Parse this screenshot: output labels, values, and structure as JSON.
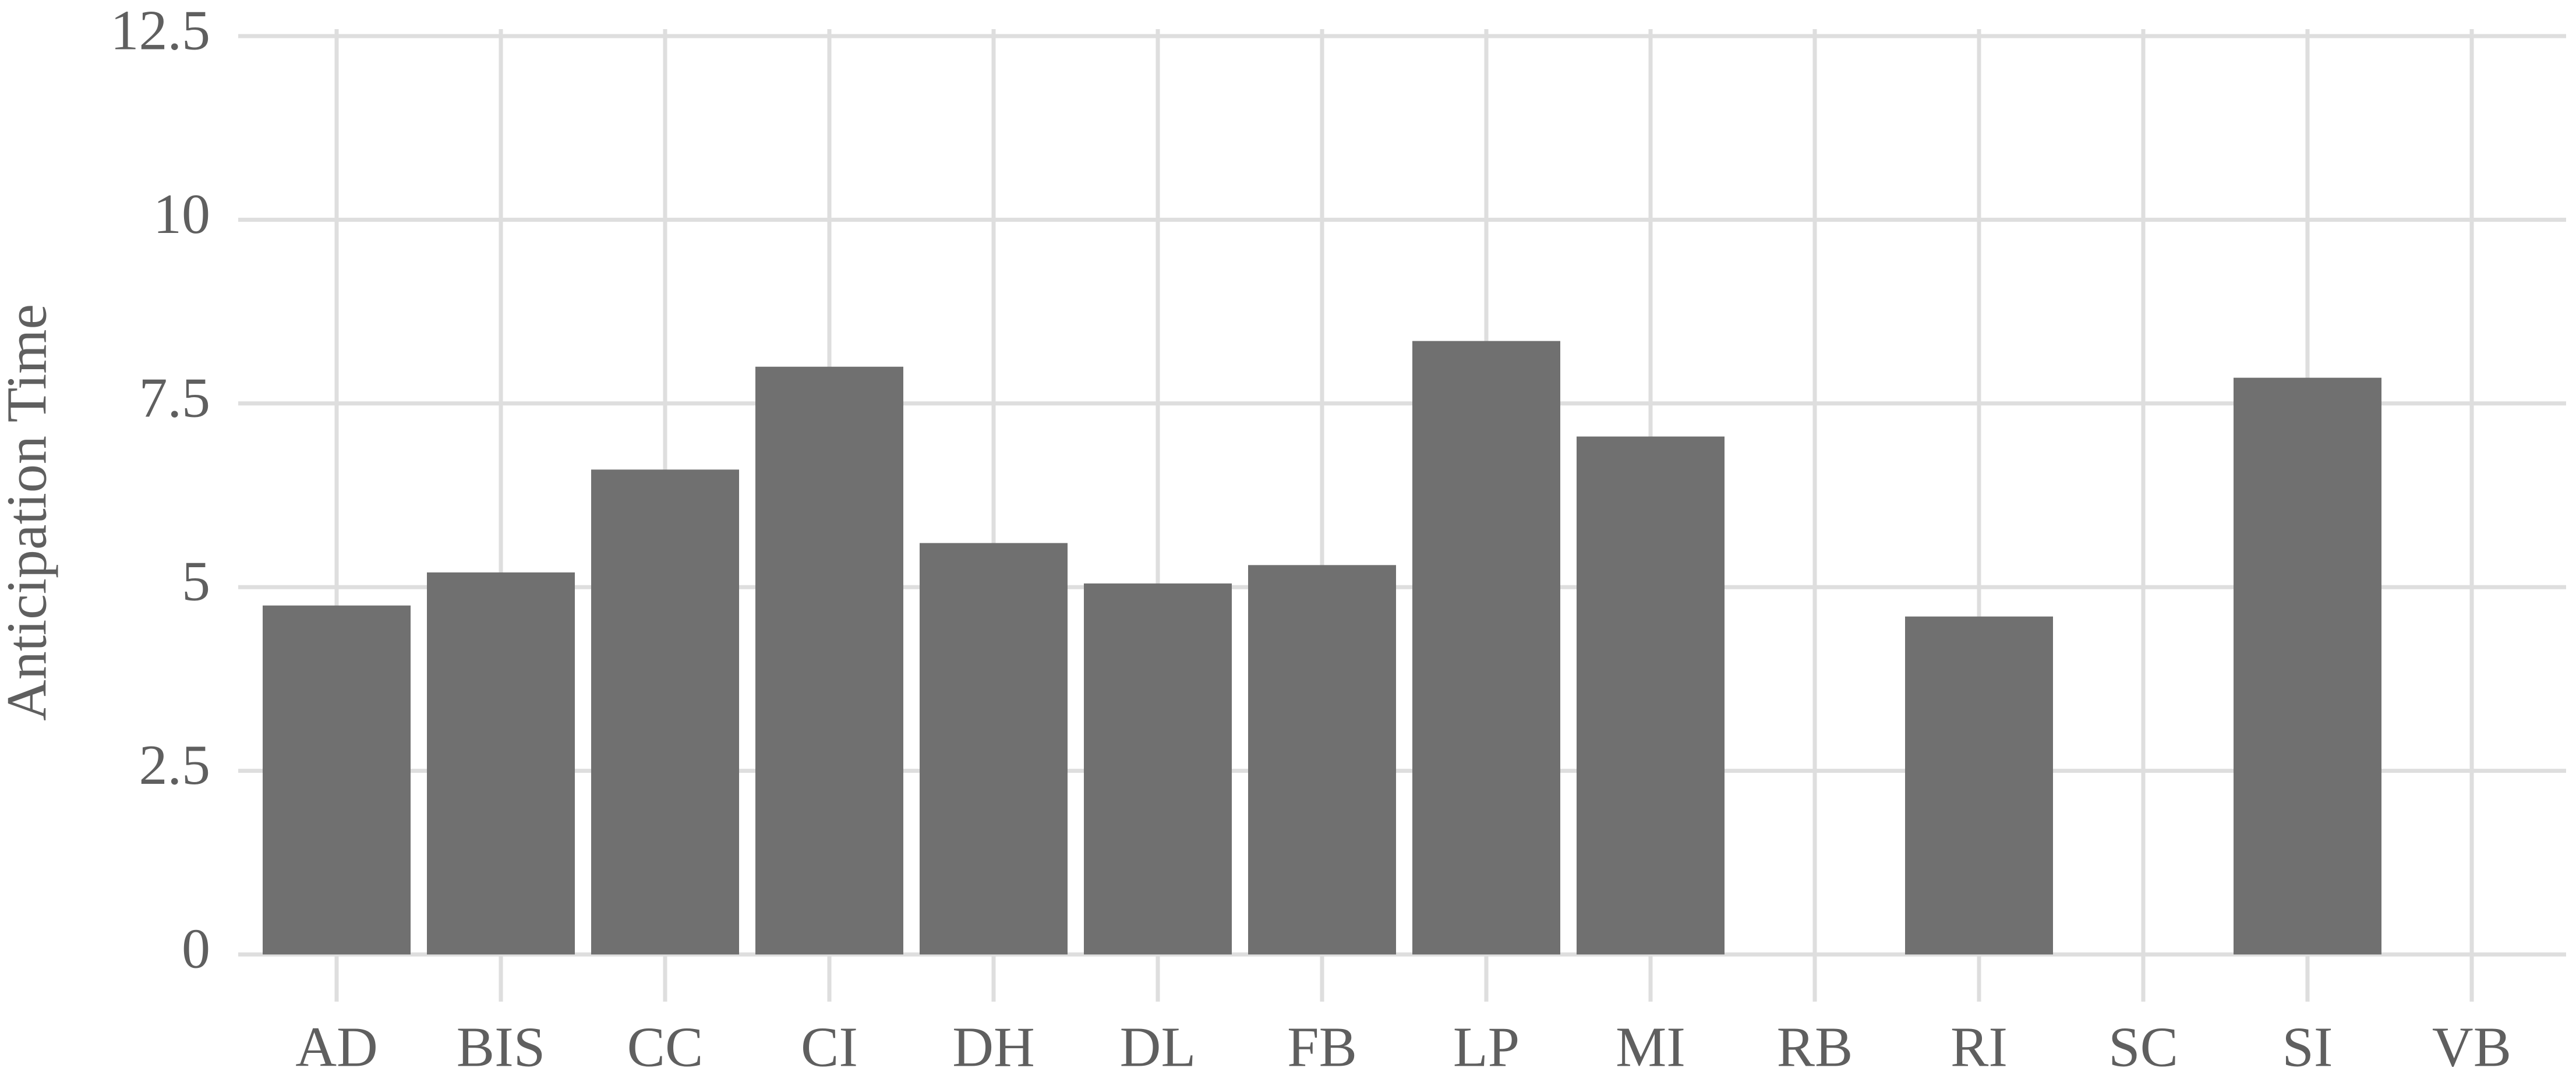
{
  "chart_data": {
    "type": "bar",
    "y_label": "Anticipation Time",
    "categories": [
      "AD",
      "BIS",
      "CC",
      "CI",
      "DH",
      "DL",
      "FB",
      "LP",
      "MI",
      "RB",
      "RI",
      "SC",
      "SI",
      "VB"
    ],
    "values": [
      4.75,
      5.2,
      6.6,
      8.0,
      5.6,
      5.05,
      5.3,
      8.35,
      7.05,
      null,
      4.6,
      null,
      7.85,
      null
    ],
    "color": "#707070",
    "ylim": [
      0,
      12.5
    ],
    "yticks": [
      0,
      2.5,
      5,
      7.5,
      10,
      12.5
    ],
    "grid": true
  }
}
